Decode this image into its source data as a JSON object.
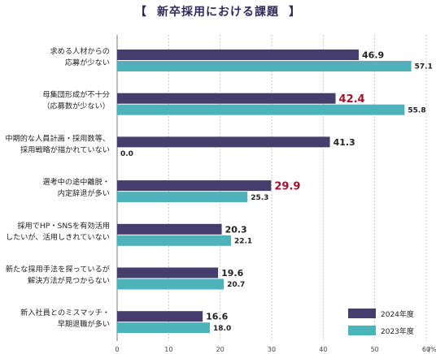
{
  "chart_data": {
    "type": "bar",
    "orientation": "horizontal",
    "title": "新卒採用における課題",
    "title_brackets": [
      "【",
      "】"
    ],
    "unit": "(%)",
    "xlim": [
      0,
      60
    ],
    "xticks": [
      "0",
      "10",
      "20",
      "30",
      "40",
      "50",
      "60"
    ],
    "grid": true,
    "legend_position": "bottom-right",
    "categories": [
      [
        "求める人材からの",
        "応募が少ない"
      ],
      [
        "母集団形成が不十分",
        "（応募数が少ない）"
      ],
      [
        "中期的な人員計画・採用数等、",
        "採用戦略が描かれていない"
      ],
      [
        "選考中の途中離脱・",
        "内定辞退が多い"
      ],
      [
        "採用でHP・SNSを有効活用",
        "したいが、活用しきれていない"
      ],
      [
        "新たな採用手法を探っているが",
        "解決方法が見つからない"
      ],
      [
        "新入社員とのミスマッチ・",
        "早期退職が多い"
      ]
    ],
    "series": [
      {
        "name": "2024年度",
        "color": "#453d6b",
        "values": [
          46.9,
          42.4,
          41.3,
          29.9,
          20.3,
          19.6,
          16.6
        ],
        "labels": [
          "46.9",
          "42.4",
          "41.3",
          "29.9",
          "20.3",
          "19.6",
          "16.6"
        ]
      },
      {
        "name": "2023年度",
        "color": "#4db2b9",
        "values": [
          57.1,
          55.8,
          0.0,
          25.3,
          22.1,
          20.7,
          18.0
        ],
        "labels": [
          "57.1",
          "55.8",
          "0.0",
          "25.3",
          "22.1",
          "20.7",
          "18.0"
        ]
      }
    ],
    "highlighted_labels": [
      {
        "series": 0,
        "index": 1,
        "color": "#a2122a"
      },
      {
        "series": 0,
        "index": 3,
        "color": "#a2122a"
      }
    ]
  }
}
